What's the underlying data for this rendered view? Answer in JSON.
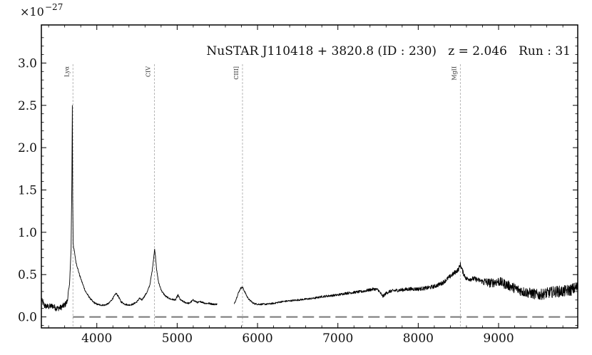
{
  "chart_data": {
    "type": "line",
    "title": "NuSTAR J110418 + 3820.8 (ID : 230)   z = 2.046   Run : 31",
    "xlabel": "",
    "ylabel": "",
    "y_scale_label": "×10",
    "y_scale_exponent": "−27",
    "xlim": [
      3310,
      9985
    ],
    "ylim": [
      -0.13,
      3.45
    ],
    "x_ticks": [
      4000,
      5000,
      6000,
      7000,
      8000,
      9000
    ],
    "x_tick_labels": [
      "4000",
      "5000",
      "6000",
      "7000",
      "8000",
      "9000"
    ],
    "y_ticks": [
      0.0,
      0.5,
      1.0,
      1.5,
      2.0,
      2.5,
      3.0
    ],
    "y_tick_labels": [
      "0.0",
      "0.5",
      "1.0",
      "1.5",
      "2.0",
      "2.5",
      "3.0"
    ],
    "grid": false,
    "emission_lines": [
      {
        "label": "Lyα",
        "x": 3703
      },
      {
        "label": "CIV",
        "x": 4717
      },
      {
        "label": "CIII]",
        "x": 5813
      },
      {
        "label": "MgII",
        "x": 8524
      }
    ],
    "zero_line": {
      "y": 0.0,
      "style": "dashed"
    },
    "series": [
      {
        "segments": [
          {
            "x": [
              3310,
              3350,
              3400,
              3450,
              3500,
              3550,
              3600,
              3630,
              3660,
              3680,
              3690,
              3695,
              3700,
              3705,
              3710,
              3720,
              3740,
              3760,
              3790,
              3820,
              3860,
              3900,
              3950,
              4000,
              4050,
              4100,
              4150,
              4200,
              4240,
              4270,
              4300,
              4350,
              4400,
              4450,
              4500,
              4530,
              4560,
              4590,
              4630,
              4660,
              4690,
              4710,
              4720,
              4730,
              4745,
              4770,
              4810,
              4860,
              4920,
              4980,
              5010,
              5040,
              5100,
              5150,
              5200,
              5250,
              5300,
              5350,
              5400,
              5450,
              5500
            ],
            "y": [
              0.2,
              0.13,
              0.12,
              0.13,
              0.1,
              0.11,
              0.14,
              0.18,
              0.38,
              0.8,
              1.65,
              2.5,
              1.4,
              0.9,
              0.82,
              0.78,
              0.65,
              0.58,
              0.48,
              0.4,
              0.3,
              0.24,
              0.18,
              0.15,
              0.14,
              0.14,
              0.16,
              0.22,
              0.28,
              0.24,
              0.18,
              0.15,
              0.14,
              0.15,
              0.18,
              0.22,
              0.2,
              0.24,
              0.3,
              0.38,
              0.55,
              0.72,
              0.8,
              0.72,
              0.55,
              0.4,
              0.3,
              0.24,
              0.21,
              0.2,
              0.26,
              0.2,
              0.17,
              0.16,
              0.2,
              0.17,
              0.18,
              0.16,
              0.16,
              0.15,
              0.15
            ]
          },
          {
            "x": [
              5710,
              5730,
              5760,
              5790,
              5813,
              5840,
              5870,
              5900,
              5950,
              6000,
              6100,
              6200,
              6300,
              6400,
              6500,
              6600,
              6700,
              6800,
              6900,
              7000,
              7100,
              7200,
              7300,
              7400,
              7450,
              7500,
              7560,
              7600,
              7640,
              7700,
              7800,
              7900,
              8000,
              8100,
              8200,
              8300,
              8350,
              8400,
              8450,
              8500,
              8524,
              8560,
              8600,
              8700,
              8800,
              8900,
              9000,
              9100,
              9200,
              9300,
              9400,
              9500,
              9600,
              9700,
              9800,
              9900,
              9985
            ],
            "y": [
              0.15,
              0.2,
              0.28,
              0.34,
              0.35,
              0.3,
              0.24,
              0.2,
              0.16,
              0.15,
              0.15,
              0.16,
              0.18,
              0.19,
              0.2,
              0.21,
              0.22,
              0.24,
              0.25,
              0.26,
              0.28,
              0.29,
              0.3,
              0.32,
              0.33,
              0.32,
              0.24,
              0.28,
              0.3,
              0.31,
              0.32,
              0.33,
              0.33,
              0.34,
              0.36,
              0.4,
              0.44,
              0.48,
              0.52,
              0.56,
              0.62,
              0.52,
              0.45,
              0.45,
              0.42,
              0.4,
              0.42,
              0.38,
              0.34,
              0.3,
              0.28,
              0.26,
              0.28,
              0.3,
              0.3,
              0.32,
              0.35
            ]
          }
        ]
      }
    ]
  }
}
